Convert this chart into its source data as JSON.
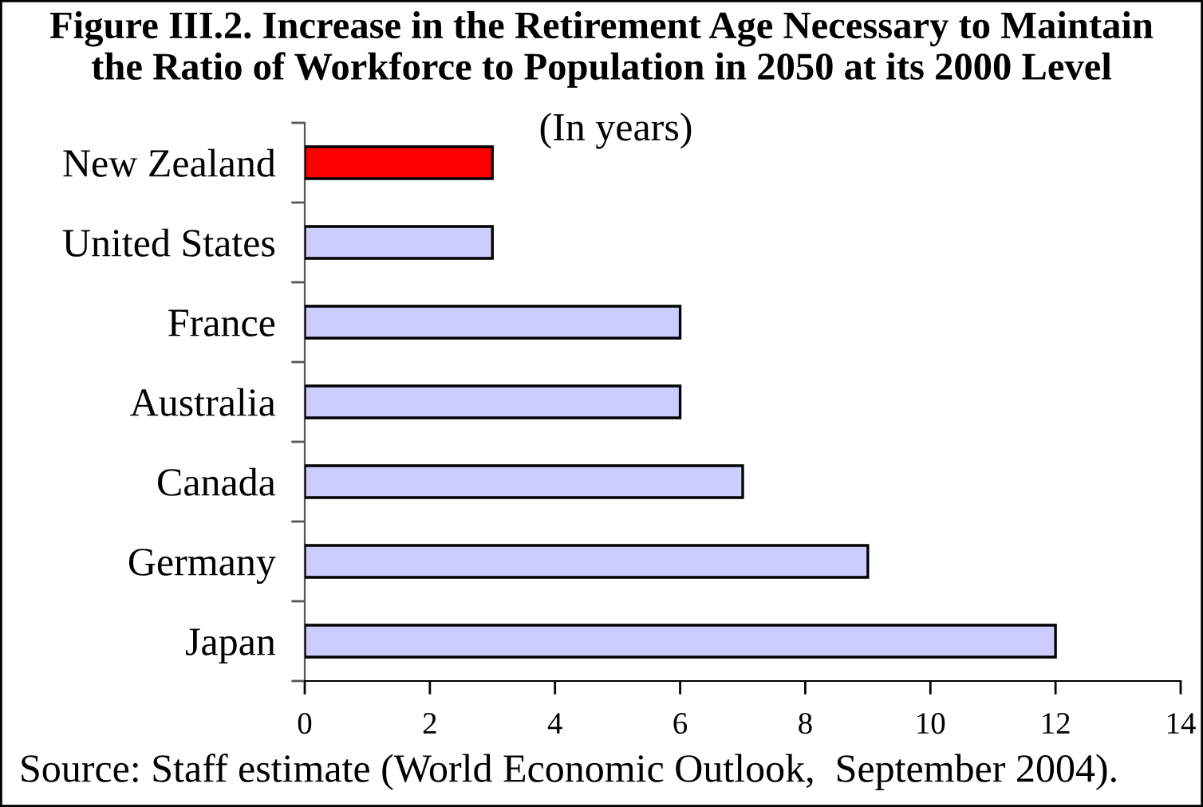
{
  "chart_data": {
    "type": "bar",
    "orientation": "horizontal",
    "title": "Figure III.2. Increase in the Retirement Age Necessary to Maintain\nthe Ratio of Workforce to Population in 2050 at its 2000 Level",
    "subtitle": "(In years)",
    "categories": [
      "New Zealand",
      "United States",
      "France",
      "Australia",
      "Canada",
      "Germany",
      "Japan"
    ],
    "values": [
      3,
      3,
      6,
      6,
      7,
      9,
      12
    ],
    "colors": [
      "#ff0000",
      "#ccccff",
      "#ccccff",
      "#ccccff",
      "#ccccff",
      "#ccccff",
      "#ccccff"
    ],
    "xlim": [
      0,
      14
    ],
    "xticks": [
      0,
      2,
      4,
      6,
      8,
      10,
      12,
      14
    ],
    "grid": false,
    "legend": false,
    "annotations": [
      "Source: Staff estimate (World Economic Outlook,  September 2004)."
    ]
  }
}
